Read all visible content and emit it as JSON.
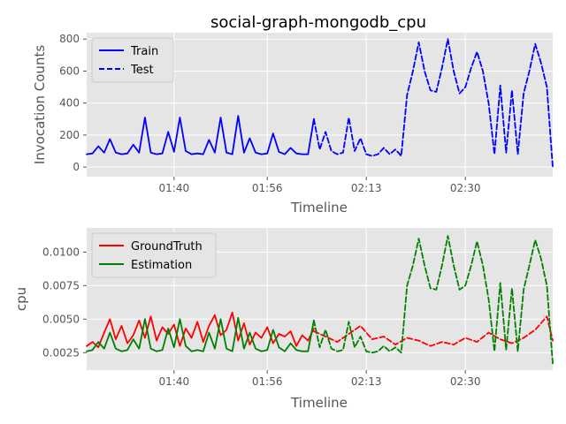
{
  "chart_data": [
    {
      "type": "line",
      "title": "social-graph-mongodb_cpu",
      "xlabel": "Timeline",
      "ylabel": "Invocation Counts",
      "xlim": [
        "01:25",
        "02:45"
      ],
      "ylim": [
        -60,
        840
      ],
      "x_ticks": [
        "01:40",
        "01:56",
        "02:13",
        "02:30"
      ],
      "y_ticks": [
        0,
        200,
        400,
        600,
        800
      ],
      "grid": true,
      "legend_position": "top-left",
      "series": [
        {
          "name": "Train",
          "color": "#0000ff",
          "style": "solid",
          "x": [
            "01:25",
            "01:26",
            "01:27",
            "01:28",
            "01:29",
            "01:30",
            "01:31",
            "01:32",
            "01:33",
            "01:34",
            "01:35",
            "01:36",
            "01:37",
            "01:38",
            "01:39",
            "01:40",
            "01:41",
            "01:42",
            "01:43",
            "01:44",
            "01:45",
            "01:46",
            "01:47",
            "01:48",
            "01:49",
            "01:50",
            "01:51",
            "01:52",
            "01:53",
            "01:54",
            "01:55",
            "01:56",
            "01:57",
            "01:58",
            "01:59",
            "02:00",
            "02:01",
            "02:02",
            "02:03",
            "02:04"
          ],
          "values": [
            80,
            85,
            130,
            90,
            175,
            90,
            80,
            85,
            140,
            90,
            310,
            90,
            80,
            85,
            220,
            95,
            310,
            100,
            80,
            85,
            80,
            170,
            90,
            310,
            90,
            80,
            320,
            90,
            180,
            90,
            80,
            85,
            210,
            95,
            80,
            120,
            85,
            80,
            80,
            300
          ]
        },
        {
          "name": "Test",
          "color": "#0000ff",
          "style": "dashed",
          "x": [
            "02:04",
            "02:05",
            "02:06",
            "02:07",
            "02:08",
            "02:09",
            "02:10",
            "02:11",
            "02:12",
            "02:13",
            "02:14",
            "02:15",
            "02:16",
            "02:17",
            "02:18",
            "02:19",
            "02:20",
            "02:21",
            "02:22",
            "02:23",
            "02:24",
            "02:25",
            "02:26",
            "02:27",
            "02:28",
            "02:29",
            "02:30",
            "02:31",
            "02:32",
            "02:33",
            "02:34",
            "02:35",
            "02:36",
            "02:37",
            "02:38",
            "02:39",
            "02:40",
            "02:41",
            "02:42",
            "02:43",
            "02:44",
            "02:45"
          ],
          "values": [
            300,
            110,
            220,
            100,
            80,
            90,
            310,
            100,
            180,
            80,
            70,
            80,
            120,
            80,
            110,
            70,
            450,
            600,
            780,
            600,
            480,
            470,
            620,
            800,
            600,
            460,
            500,
            620,
            720,
            600,
            400,
            80,
            510,
            90,
            480,
            80,
            460,
            600,
            770,
            650,
            500,
            0
          ]
        }
      ]
    },
    {
      "type": "line",
      "title": "",
      "xlabel": "Timeline",
      "ylabel": "cpu",
      "xlim": [
        "01:25",
        "02:45"
      ],
      "ylim": [
        0.0012,
        0.0118
      ],
      "x_ticks": [
        "01:40",
        "01:56",
        "02:13",
        "02:30"
      ],
      "y_ticks": [
        "0.0025",
        "0.0050",
        "0.0075",
        "0.0100"
      ],
      "grid": true,
      "legend_position": "top-left",
      "series": [
        {
          "name": "GroundTruth",
          "color": "#ff0000",
          "style": "solid",
          "x": [
            "01:25",
            "01:26",
            "01:27",
            "01:28",
            "01:29",
            "01:30",
            "01:31",
            "01:32",
            "01:33",
            "01:34",
            "01:35",
            "01:36",
            "01:37",
            "01:38",
            "01:39",
            "01:40",
            "01:41",
            "01:42",
            "01:43",
            "01:44",
            "01:45",
            "01:46",
            "01:47",
            "01:48",
            "01:49",
            "01:50",
            "01:51",
            "01:52",
            "01:53",
            "01:54",
            "01:55",
            "01:56",
            "01:57",
            "01:58",
            "01:59",
            "02:00",
            "02:01",
            "02:02",
            "02:03",
            "02:04"
          ],
          "values": [
            0.003,
            0.0033,
            0.0029,
            0.004,
            0.005,
            0.0035,
            0.0045,
            0.0032,
            0.0038,
            0.0049,
            0.0036,
            0.0052,
            0.0034,
            0.0044,
            0.0039,
            0.0046,
            0.003,
            0.0043,
            0.0036,
            0.0048,
            0.0033,
            0.0045,
            0.0053,
            0.0038,
            0.0042,
            0.0055,
            0.0034,
            0.0047,
            0.0031,
            0.004,
            0.0036,
            0.0044,
            0.0032,
            0.0039,
            0.0037,
            0.0041,
            0.003,
            0.0038,
            0.0034,
            0.0043
          ]
        },
        {
          "name": "",
          "color": "#ff0000",
          "style": "dashed",
          "x": [
            "02:04",
            "02:06",
            "02:08",
            "02:10",
            "02:12",
            "02:14",
            "02:16",
            "02:18",
            "02:20",
            "02:22",
            "02:24",
            "02:26",
            "02:28",
            "02:30",
            "02:32",
            "02:34",
            "02:36",
            "02:38",
            "02:40",
            "02:42",
            "02:44",
            "02:45"
          ],
          "values": [
            0.0041,
            0.0037,
            0.0033,
            0.0039,
            0.0045,
            0.0035,
            0.0037,
            0.0031,
            0.0036,
            0.0034,
            0.003,
            0.0033,
            0.0031,
            0.0036,
            0.0033,
            0.004,
            0.0035,
            0.0032,
            0.0036,
            0.0042,
            0.0052,
            0.0034
          ]
        },
        {
          "name": "Estimation",
          "color": "#008000",
          "style": "solid",
          "x": [
            "01:25",
            "01:26",
            "01:27",
            "01:28",
            "01:29",
            "01:30",
            "01:31",
            "01:32",
            "01:33",
            "01:34",
            "01:35",
            "01:36",
            "01:37",
            "01:38",
            "01:39",
            "01:40",
            "01:41",
            "01:42",
            "01:43",
            "01:44",
            "01:45",
            "01:46",
            "01:47",
            "01:48",
            "01:49",
            "01:50",
            "01:51",
            "01:52",
            "01:53",
            "01:54",
            "01:55",
            "01:56",
            "01:57",
            "01:58",
            "01:59",
            "02:00",
            "02:01",
            "02:02",
            "02:03",
            "02:04"
          ],
          "values": [
            0.0026,
            0.0027,
            0.0033,
            0.0028,
            0.004,
            0.0028,
            0.0026,
            0.0027,
            0.0035,
            0.0028,
            0.005,
            0.0028,
            0.0026,
            0.0027,
            0.0043,
            0.0029,
            0.005,
            0.003,
            0.0026,
            0.0027,
            0.0026,
            0.004,
            0.0028,
            0.005,
            0.0028,
            0.0026,
            0.0051,
            0.0028,
            0.004,
            0.0028,
            0.0026,
            0.0027,
            0.0042,
            0.0029,
            0.0026,
            0.0032,
            0.0027,
            0.0026,
            0.0026,
            0.0049
          ]
        },
        {
          "name": "",
          "color": "#008000",
          "style": "dashed",
          "x": [
            "02:04",
            "02:05",
            "02:06",
            "02:07",
            "02:08",
            "02:09",
            "02:10",
            "02:11",
            "02:12",
            "02:13",
            "02:14",
            "02:15",
            "02:16",
            "02:17",
            "02:18",
            "02:19",
            "02:20",
            "02:21",
            "02:22",
            "02:23",
            "02:24",
            "02:25",
            "02:26",
            "02:27",
            "02:28",
            "02:29",
            "02:30",
            "02:31",
            "02:32",
            "02:33",
            "02:34",
            "02:35",
            "02:36",
            "02:37",
            "02:38",
            "02:39",
            "02:40",
            "02:41",
            "02:42",
            "02:43",
            "02:44",
            "02:45"
          ],
          "values": [
            0.0049,
            0.0029,
            0.0042,
            0.0028,
            0.0026,
            0.0027,
            0.0048,
            0.0029,
            0.0037,
            0.0026,
            0.0025,
            0.0026,
            0.003,
            0.0026,
            0.0029,
            0.0025,
            0.0075,
            0.009,
            0.011,
            0.009,
            0.0073,
            0.0072,
            0.009,
            0.0112,
            0.009,
            0.0072,
            0.0075,
            0.009,
            0.0108,
            0.009,
            0.0065,
            0.0026,
            0.0077,
            0.0027,
            0.0073,
            0.0026,
            0.0072,
            0.009,
            0.0109,
            0.0095,
            0.0075,
            0.0017
          ]
        }
      ]
    }
  ]
}
